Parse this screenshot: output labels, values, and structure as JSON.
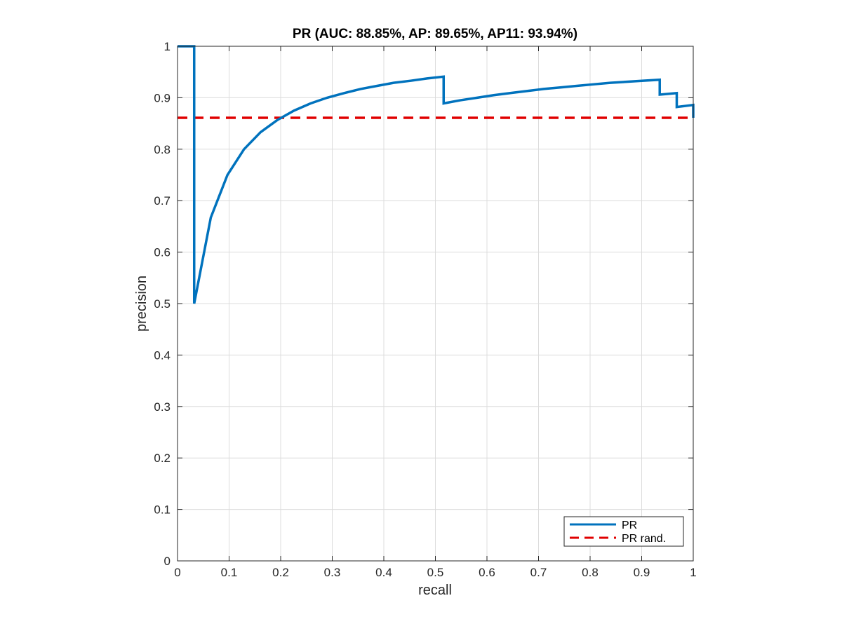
{
  "chart_data": {
    "type": "line",
    "title": "PR (AUC: 88.85%, AP: 89.65%, AP11: 93.94%)",
    "xlabel": "recall",
    "ylabel": "precision",
    "xlim": [
      0,
      1
    ],
    "ylim": [
      0,
      1
    ],
    "x_ticks": [
      "0",
      "0.1",
      "0.2",
      "0.3",
      "0.4",
      "0.5",
      "0.6",
      "0.7",
      "0.8",
      "0.9",
      "1"
    ],
    "y_ticks": [
      "0",
      "0.1",
      "0.2",
      "0.3",
      "0.4",
      "0.5",
      "0.6",
      "0.7",
      "0.8",
      "0.9",
      "1"
    ],
    "grid": true,
    "legend_position": "bottom-right",
    "series": [
      {
        "name": "PR",
        "color": "#0072bd",
        "style": "solid",
        "x": [
          0,
          0.0323,
          0.0323,
          0.0645,
          0.0968,
          0.129,
          0.161,
          0.194,
          0.226,
          0.258,
          0.29,
          0.323,
          0.355,
          0.387,
          0.419,
          0.452,
          0.484,
          0.516,
          0.516,
          0.548,
          0.581,
          0.613,
          0.645,
          0.677,
          0.71,
          0.742,
          0.774,
          0.806,
          0.839,
          0.871,
          0.903,
          0.935,
          0.935,
          0.968,
          0.968,
          1.0,
          1.0
        ],
        "y": [
          1.0,
          1.0,
          0.5,
          0.667,
          0.75,
          0.8,
          0.833,
          0.857,
          0.875,
          0.889,
          0.9,
          0.909,
          0.917,
          0.923,
          0.929,
          0.933,
          0.9375,
          0.941,
          0.889,
          0.895,
          0.9,
          0.905,
          0.909,
          0.913,
          0.917,
          0.92,
          0.923,
          0.926,
          0.929,
          0.931,
          0.933,
          0.935,
          0.906,
          0.909,
          0.882,
          0.886,
          0.861
        ]
      },
      {
        "name": "PR rand.",
        "color": "#e00000",
        "style": "dashed",
        "x": [
          0,
          1
        ],
        "y": [
          0.861,
          0.861
        ]
      }
    ]
  }
}
